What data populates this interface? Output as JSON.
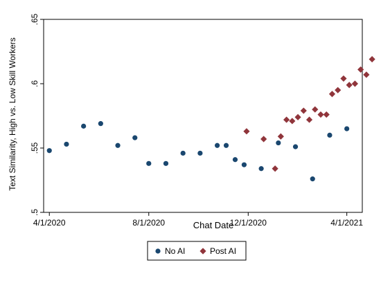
{
  "chart_data": {
    "type": "scatter",
    "xlabel": "Chat Date",
    "ylabel": "Text Similarity, High vs. Low Skill Workers",
    "x_ticks": [
      "4/1/2020",
      "8/1/2020",
      "12/1/2020",
      "4/1/2021"
    ],
    "y_ticks": [
      ".5",
      ".55",
      ".6",
      ".65"
    ],
    "x_range": [
      "2020-03-25",
      "2021-04-20"
    ],
    "ylim": [
      0.5,
      0.65
    ],
    "grid": false,
    "legend_position": "bottom",
    "series": [
      {
        "name": "No AI",
        "color": "#1a476f",
        "marker": "circle",
        "points": [
          [
            "2020-04-01",
            0.548
          ],
          [
            "2020-04-22",
            0.553
          ],
          [
            "2020-05-13",
            0.567
          ],
          [
            "2020-06-03",
            0.569
          ],
          [
            "2020-06-24",
            0.552
          ],
          [
            "2020-07-15",
            0.558
          ],
          [
            "2020-08-01",
            0.538
          ],
          [
            "2020-08-22",
            0.538
          ],
          [
            "2020-09-12",
            0.546
          ],
          [
            "2020-10-03",
            0.546
          ],
          [
            "2020-10-24",
            0.552
          ],
          [
            "2020-11-04",
            0.552
          ],
          [
            "2020-11-15",
            0.541
          ],
          [
            "2020-11-26",
            0.537
          ],
          [
            "2020-12-17",
            0.534
          ],
          [
            "2021-01-07",
            0.554
          ],
          [
            "2021-01-28",
            0.551
          ],
          [
            "2021-02-18",
            0.526
          ],
          [
            "2021-03-11",
            0.56
          ],
          [
            "2021-04-01",
            0.565
          ]
        ]
      },
      {
        "name": "Post AI",
        "color": "#90353b",
        "marker": "diamond",
        "points": [
          [
            "2020-11-29",
            0.563
          ],
          [
            "2020-12-20",
            0.557
          ],
          [
            "2021-01-03",
            0.534
          ],
          [
            "2021-01-10",
            0.559
          ],
          [
            "2021-01-17",
            0.572
          ],
          [
            "2021-01-24",
            0.571
          ],
          [
            "2021-01-31",
            0.574
          ],
          [
            "2021-02-07",
            0.579
          ],
          [
            "2021-02-14",
            0.572
          ],
          [
            "2021-02-21",
            0.58
          ],
          [
            "2021-02-28",
            0.576
          ],
          [
            "2021-03-07",
            0.576
          ],
          [
            "2021-03-14",
            0.592
          ],
          [
            "2021-03-21",
            0.595
          ],
          [
            "2021-03-28",
            0.604
          ],
          [
            "2021-04-04",
            0.599
          ],
          [
            "2021-04-11",
            0.6
          ],
          [
            "2021-04-18",
            0.611
          ],
          [
            "2021-04-25",
            0.607
          ],
          [
            "2021-05-02",
            0.619
          ]
        ]
      }
    ]
  }
}
